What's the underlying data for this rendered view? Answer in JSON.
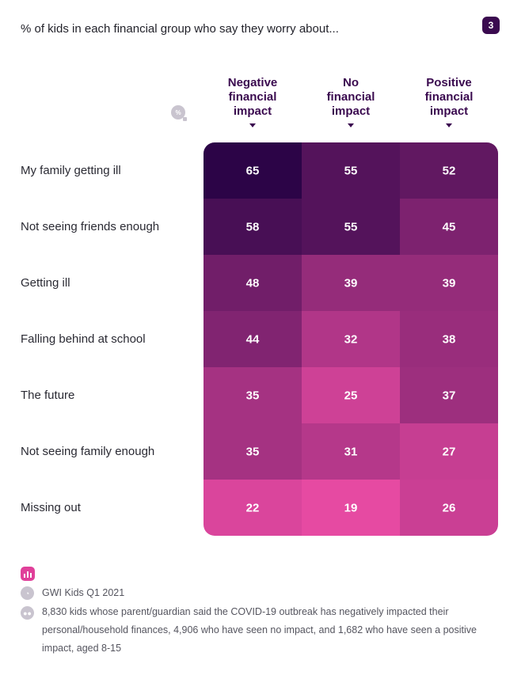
{
  "header": {
    "title": "% of kids in each financial group who say they worry about...",
    "badge": "3",
    "unit_icon": "%"
  },
  "chart_data": {
    "type": "heatmap",
    "columns": [
      {
        "line1": "Negative",
        "line2": "financial",
        "line3": "impact"
      },
      {
        "line1": "No",
        "line2": "financial",
        "line3": "impact"
      },
      {
        "line1": "Positive",
        "line2": "financial",
        "line3": "impact"
      }
    ],
    "rows": [
      "My family getting ill",
      "Not seeing friends enough",
      "Getting ill",
      "Falling behind at school",
      "The future",
      "Not seeing family enough",
      "Missing out"
    ],
    "values": [
      [
        65,
        55,
        52
      ],
      [
        58,
        55,
        45
      ],
      [
        48,
        39,
        39
      ],
      [
        44,
        32,
        38
      ],
      [
        35,
        25,
        37
      ],
      [
        35,
        31,
        27
      ],
      [
        22,
        19,
        26
      ]
    ],
    "colors": {
      "high": "#2c0447",
      "low": "#e64aa2"
    }
  },
  "footer": {
    "source": "GWI Kids Q1 2021",
    "note": "8,830 kids whose parent/guardian said the COVID-19 outbreak has negatively impacted their personal/household finances, 4,906 who have seen no impact, and 1,682 who have seen a positive impact, aged 8-15"
  }
}
